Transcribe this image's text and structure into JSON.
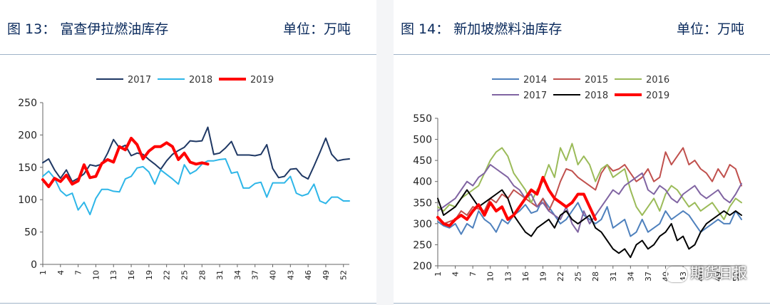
{
  "chart_data": [
    {
      "type": "line",
      "fig_label": "图 13：",
      "title": "富查伊拉燃油库存",
      "unit": "单位：万吨",
      "ylim": [
        0,
        250
      ],
      "yticks": [
        0,
        50,
        100,
        150,
        200,
        250
      ],
      "xlim": [
        1,
        53
      ],
      "xticks": [
        1,
        4,
        7,
        10,
        13,
        16,
        19,
        22,
        25,
        28,
        31,
        34,
        37,
        40,
        43,
        46,
        49,
        52
      ],
      "legend_placement": "top-center",
      "series": [
        {
          "name": "2017",
          "color": "#1f3864",
          "width": 2,
          "x": [
            1,
            2,
            3,
            4,
            5,
            6,
            7,
            8,
            9,
            10,
            11,
            12,
            13,
            14,
            15,
            16,
            17,
            18,
            19,
            20,
            21,
            22,
            23,
            24,
            25,
            26,
            27,
            28,
            29,
            30,
            31,
            32,
            33,
            34,
            35,
            36,
            37,
            38,
            39,
            40,
            41,
            42,
            43,
            44,
            45,
            46,
            47,
            48,
            49,
            50,
            51,
            52,
            53
          ],
          "values": [
            157,
            163,
            146,
            133,
            146,
            128,
            133,
            140,
            154,
            152,
            155,
            172,
            193,
            180,
            184,
            168,
            172,
            170,
            162,
            155,
            147,
            160,
            170,
            176,
            181,
            191,
            190,
            191,
            212,
            170,
            172,
            180,
            190,
            169,
            169,
            169,
            168,
            170,
            185,
            148,
            134,
            136,
            147,
            148,
            137,
            132,
            152,
            173,
            195,
            170,
            160,
            162,
            163
          ]
        },
        {
          "name": "2018",
          "color": "#2eb6e8",
          "width": 2,
          "x": [
            1,
            2,
            3,
            4,
            5,
            6,
            7,
            8,
            9,
            10,
            11,
            12,
            13,
            14,
            15,
            16,
            17,
            18,
            19,
            20,
            21,
            22,
            23,
            24,
            25,
            26,
            27,
            28,
            29,
            30,
            31,
            32,
            33,
            34,
            35,
            36,
            37,
            38,
            39,
            40,
            41,
            42,
            43,
            44,
            45,
            46,
            47,
            48,
            49,
            50,
            51,
            52,
            53
          ],
          "values": [
            136,
            144,
            133,
            114,
            106,
            110,
            84,
            96,
            77,
            102,
            116,
            116,
            113,
            112,
            132,
            136,
            149,
            151,
            143,
            124,
            146,
            139,
            132,
            124,
            154,
            140,
            145,
            155,
            160,
            160,
            162,
            163,
            141,
            143,
            118,
            118,
            125,
            127,
            104,
            126,
            126,
            126,
            136,
            110,
            106,
            109,
            124,
            98,
            94,
            104,
            104,
            98,
            98
          ]
        },
        {
          "name": "2019",
          "color": "#ff0000",
          "width": 4,
          "x": [
            1,
            2,
            3,
            4,
            5,
            6,
            7,
            8,
            9,
            10,
            11,
            12,
            13,
            14,
            15,
            16,
            17,
            18,
            19,
            20,
            21,
            22,
            23,
            24,
            25,
            26,
            27,
            28,
            29
          ],
          "values": [
            131,
            120,
            133,
            128,
            138,
            124,
            129,
            154,
            134,
            136,
            156,
            162,
            158,
            182,
            177,
            195,
            185,
            163,
            175,
            182,
            182,
            188,
            182,
            162,
            172,
            158,
            155,
            157,
            155
          ]
        }
      ]
    },
    {
      "type": "line",
      "fig_label": "图 14：",
      "title": "新加坡燃料油库存",
      "unit": "单位：万吨",
      "ylim": [
        200,
        550
      ],
      "yticks": [
        200,
        250,
        300,
        350,
        400,
        450,
        500,
        550
      ],
      "xlim": [
        1,
        53
      ],
      "xticks": [
        1,
        4,
        7,
        10,
        13,
        16,
        19,
        22,
        25,
        28,
        31,
        34,
        37,
        40,
        43,
        46,
        49,
        52
      ],
      "legend_placement": "top-center",
      "series": [
        {
          "name": "2014",
          "color": "#4f81bd",
          "width": 2,
          "x": [
            1,
            2,
            3,
            4,
            5,
            6,
            7,
            8,
            9,
            10,
            11,
            12,
            13,
            14,
            15,
            16,
            17,
            18,
            19,
            20,
            21,
            22,
            23,
            24,
            25,
            26,
            27,
            28,
            29,
            30,
            31,
            32,
            33,
            34,
            35,
            36,
            37,
            38,
            39,
            40,
            41,
            42,
            43,
            44,
            45,
            46,
            47,
            48,
            49,
            50,
            51,
            52,
            53
          ],
          "values": [
            305,
            295,
            290,
            300,
            275,
            300,
            290,
            330,
            310,
            300,
            280,
            310,
            300,
            320,
            330,
            345,
            325,
            330,
            360,
            340,
            320,
            300,
            310,
            330,
            350,
            320,
            310,
            300,
            310,
            340,
            290,
            300,
            310,
            270,
            280,
            310,
            280,
            290,
            300,
            330,
            310,
            320,
            330,
            320,
            300,
            280,
            290,
            300,
            310,
            300,
            300,
            330,
            310
          ]
        },
        {
          "name": "2015",
          "color": "#c0504d",
          "width": 2,
          "x": [
            1,
            2,
            3,
            4,
            5,
            6,
            7,
            8,
            9,
            10,
            11,
            12,
            13,
            14,
            15,
            16,
            17,
            18,
            19,
            20,
            21,
            22,
            23,
            24,
            25,
            26,
            27,
            28,
            29,
            30,
            31,
            32,
            33,
            34,
            35,
            36,
            37,
            38,
            39,
            40,
            41,
            42,
            43,
            44,
            45,
            46,
            47,
            48,
            49,
            50,
            51,
            52,
            53
          ],
          "values": [
            315,
            300,
            305,
            310,
            330,
            320,
            340,
            335,
            330,
            360,
            350,
            370,
            360,
            380,
            370,
            360,
            350,
            340,
            360,
            330,
            360,
            400,
            430,
            425,
            410,
            400,
            390,
            380,
            420,
            440,
            425,
            430,
            440,
            420,
            400,
            410,
            430,
            400,
            410,
            470,
            440,
            460,
            480,
            440,
            450,
            430,
            420,
            400,
            430,
            410,
            440,
            430,
            390
          ]
        },
        {
          "name": "2016",
          "color": "#9bbb59",
          "width": 2,
          "x": [
            1,
            2,
            3,
            4,
            5,
            6,
            7,
            8,
            9,
            10,
            11,
            12,
            13,
            14,
            15,
            16,
            17,
            18,
            19,
            20,
            21,
            22,
            23,
            24,
            25,
            26,
            27,
            28,
            29,
            30,
            31,
            32,
            33,
            34,
            35,
            36,
            37,
            38,
            39,
            40,
            41,
            42,
            43,
            44,
            45,
            46,
            47,
            48,
            49,
            50,
            51,
            52,
            53
          ],
          "values": [
            340,
            330,
            345,
            340,
            360,
            370,
            380,
            390,
            420,
            450,
            470,
            480,
            460,
            420,
            400,
            380,
            350,
            380,
            400,
            440,
            410,
            480,
            450,
            490,
            440,
            460,
            440,
            400,
            430,
            440,
            410,
            420,
            430,
            380,
            340,
            320,
            340,
            360,
            330,
            370,
            390,
            380,
            360,
            340,
            350,
            330,
            340,
            350,
            330,
            310,
            340,
            360,
            350
          ]
        },
        {
          "name": "2017",
          "color": "#8064a2",
          "width": 2,
          "x": [
            1,
            2,
            3,
            4,
            5,
            6,
            7,
            8,
            9,
            10,
            11,
            12,
            13,
            14,
            15,
            16,
            17,
            18,
            19,
            20,
            21,
            22,
            23,
            24,
            25,
            26,
            27,
            28,
            29,
            30,
            31,
            32,
            33,
            34,
            35,
            36,
            37,
            38,
            39,
            40,
            41,
            42,
            43,
            44,
            45,
            46,
            47,
            48,
            49,
            50,
            51,
            52,
            53
          ],
          "values": [
            330,
            340,
            350,
            360,
            380,
            400,
            390,
            410,
            420,
            440,
            430,
            420,
            410,
            390,
            380,
            360,
            370,
            340,
            350,
            330,
            320,
            310,
            340,
            300,
            280,
            330,
            300,
            320,
            340,
            360,
            380,
            370,
            390,
            400,
            410,
            420,
            380,
            370,
            390,
            380,
            360,
            350,
            370,
            380,
            390,
            370,
            360,
            370,
            380,
            360,
            350,
            370,
            395
          ]
        },
        {
          "name": "2018",
          "color": "#000000",
          "width": 2,
          "x": [
            1,
            2,
            3,
            4,
            5,
            6,
            7,
            8,
            9,
            10,
            11,
            12,
            13,
            14,
            15,
            16,
            17,
            18,
            19,
            20,
            21,
            22,
            23,
            24,
            25,
            26,
            27,
            28,
            29,
            30,
            31,
            32,
            33,
            34,
            35,
            36,
            37,
            38,
            39,
            40,
            41,
            42,
            43,
            44,
            45,
            46,
            47,
            48,
            49,
            50,
            51,
            52,
            53
          ],
          "values": [
            360,
            320,
            330,
            340,
            360,
            380,
            360,
            340,
            350,
            360,
            370,
            380,
            360,
            320,
            300,
            280,
            270,
            290,
            300,
            310,
            290,
            320,
            330,
            310,
            300,
            310,
            320,
            290,
            280,
            260,
            240,
            230,
            240,
            220,
            250,
            260,
            240,
            250,
            270,
            280,
            300,
            260,
            270,
            240,
            250,
            280,
            300,
            310,
            320,
            330,
            320,
            330,
            320
          ]
        },
        {
          "name": "2019",
          "color": "#ff0000",
          "width": 4,
          "x": [
            1,
            2,
            3,
            4,
            5,
            6,
            7,
            8,
            9,
            10,
            11,
            12,
            13,
            14,
            15,
            16,
            17,
            18,
            19,
            20,
            21,
            22,
            23,
            24,
            25,
            26,
            27,
            28
          ],
          "values": [
            315,
            300,
            295,
            310,
            320,
            310,
            330,
            345,
            320,
            350,
            330,
            340,
            310,
            320,
            340,
            360,
            380,
            370,
            410,
            380,
            360,
            350,
            340,
            350,
            370,
            370,
            340,
            310
          ]
        }
      ]
    }
  ],
  "watermark": "期货日报"
}
